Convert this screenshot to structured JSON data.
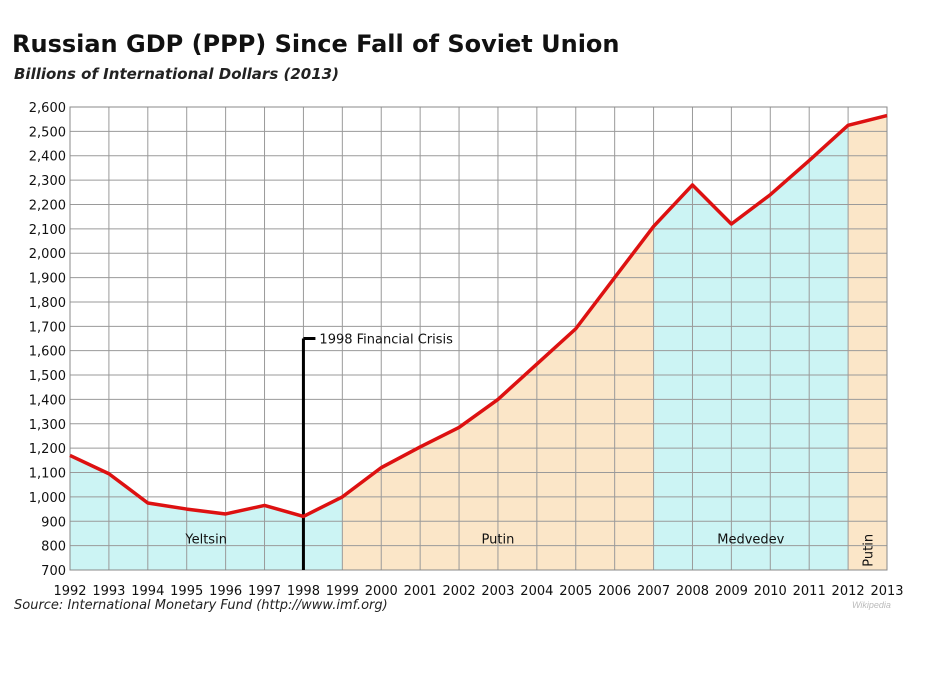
{
  "chart_data": {
    "type": "line",
    "title": "Russian GDP (PPP) Since Fall of Soviet Union",
    "subtitle": "Billions of International Dollars (2013)",
    "xlabel": "",
    "ylabel": "",
    "x": [
      1992,
      1993,
      1994,
      1995,
      1996,
      1997,
      1998,
      1999,
      2000,
      2001,
      2002,
      2003,
      2004,
      2005,
      2006,
      2007,
      2008,
      2009,
      2010,
      2011,
      2012,
      2013
    ],
    "series": [
      {
        "name": "",
        "values": [
          1170,
          1095,
          975,
          950,
          930,
          965,
          920,
          1000,
          1120,
          1205,
          1285,
          1400,
          1545,
          1690,
          1900,
          2110,
          2280,
          2120,
          2240,
          2380,
          2525,
          2565
        ],
        "color": "#dd1111"
      }
    ],
    "ylim": [
      700,
      2600
    ],
    "ytick_step": 100,
    "grid": true,
    "legend": "none",
    "eras": [
      {
        "label": "Yeltsin",
        "start": 1992,
        "end": 1999,
        "color": "#ccf4f4"
      },
      {
        "label": "Putin",
        "start": 1999,
        "end": 2007,
        "color": "#fbe6c8"
      },
      {
        "label": "Medvedev",
        "start": 2007,
        "end": 2012,
        "color": "#ccf4f4"
      },
      {
        "label": "Putin",
        "start": 2012,
        "end": 2013,
        "color": "#fbe6c8",
        "vertical": true
      }
    ],
    "annotation": {
      "label": "1998 Financial Crisis",
      "x": 1998,
      "y": 1650
    }
  },
  "source": "Source: International Monetary Fund (http://www.imf.org)",
  "watermark": "Wikipedia"
}
